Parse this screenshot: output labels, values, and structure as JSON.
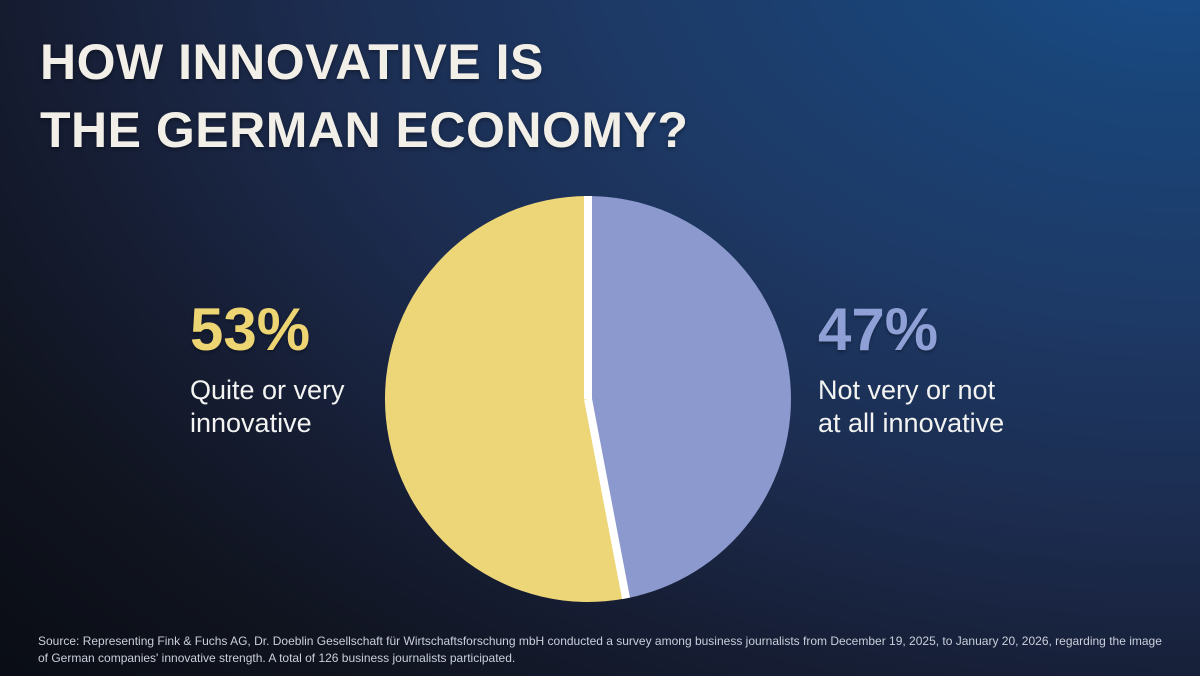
{
  "title": {
    "line1": "HOW INNOVATIVE IS",
    "line2": "THE GERMAN ECONOMY?"
  },
  "stats": {
    "left": {
      "value": "53%",
      "label_lines": [
        "Quite or very",
        "innovative"
      ],
      "color": "#EDD573"
    },
    "right": {
      "value": "47%",
      "label_lines": [
        "Not very or not",
        "at all innovative"
      ],
      "color": "#8EA0D6"
    }
  },
  "chart_data": {
    "type": "pie",
    "title": "How innovative is the German economy?",
    "segments": [
      {
        "label": "Quite or very innovative",
        "value": 53,
        "color": "#EDD678"
      },
      {
        "label": "Not very or not at all innovative",
        "value": 47,
        "color": "#8C99CE"
      }
    ],
    "start_angle_deg": 0,
    "direction": "counterclockwise",
    "divider_color": "#FFFFFF",
    "legend_position": "none",
    "data_labels": "outside"
  },
  "source": {
    "line1": "Source: Representing Fink & Fuchs AG, Dr. Doeblin Gesellschaft für Wirtschaftsforschung mbH conducted a survey among business journalists from December 19, 2025, to January 20, 2026, regarding the image",
    "line2": "of German companies' innovative strength. A total of 126 business journalists participated."
  },
  "colors": {
    "background_top_right": "#1A4F8F",
    "background_dark": "#0A0D15",
    "title_text": "#F2EFE8",
    "body_text": "#F3F4F2",
    "source_text": "#C9CFDB"
  }
}
